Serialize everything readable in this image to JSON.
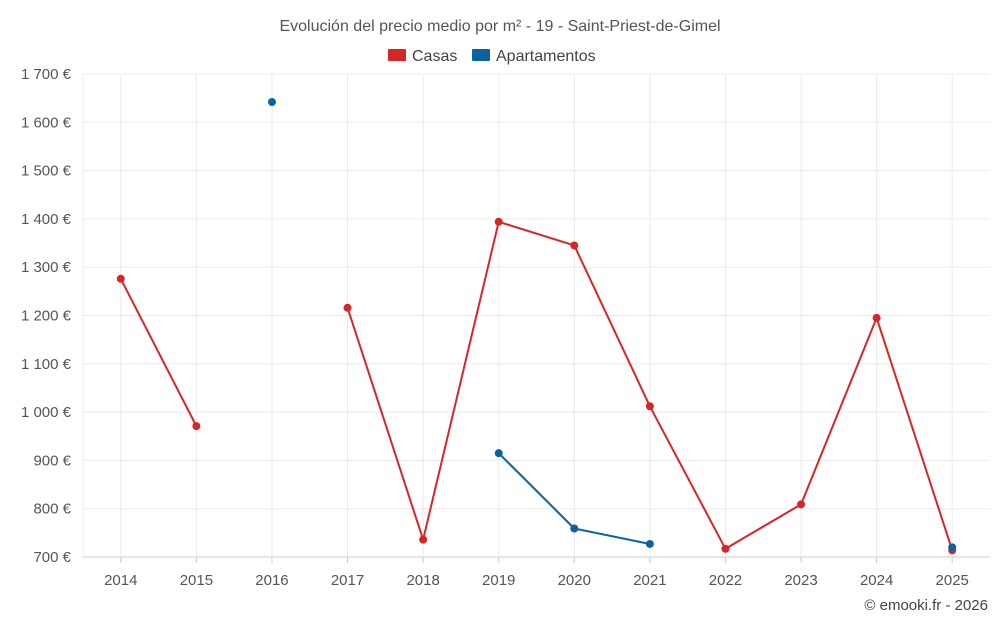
{
  "chart_data": {
    "type": "line",
    "title": "Evolución del precio medio por m² - 19 - Saint-Priest-de-Gimel",
    "categories": [
      "2014",
      "2015",
      "2016",
      "2017",
      "2018",
      "2019",
      "2020",
      "2021",
      "2022",
      "2023",
      "2024",
      "2025"
    ],
    "ylim": [
      700,
      1700
    ],
    "yticks": [
      700,
      800,
      900,
      1000,
      1100,
      1200,
      1300,
      1400,
      1500,
      1600,
      1700
    ],
    "ytick_labels": [
      "700 €",
      "800 €",
      "900 €",
      "1 000 €",
      "1 100 €",
      "1 200 €",
      "1 300 €",
      "1 400 €",
      "1 500 €",
      "1 600 €",
      "1 700 €"
    ],
    "grid": true,
    "legend_position": "top-center",
    "series": [
      {
        "name": "Casas",
        "color": "#d62728",
        "values": [
          1276,
          971,
          null,
          1216,
          736,
          1394,
          1345,
          1012,
          717,
          809,
          1195,
          714
        ]
      },
      {
        "name": "Apartamentos",
        "color": "#0a63a0",
        "values": [
          null,
          null,
          1642,
          null,
          null,
          915,
          759,
          727,
          null,
          null,
          null,
          720
        ]
      }
    ],
    "credit": "© emooki.fr - 2026"
  }
}
